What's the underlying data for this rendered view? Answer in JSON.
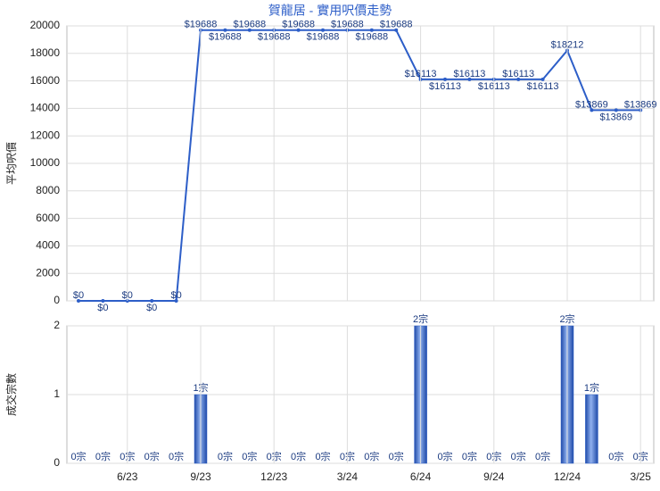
{
  "chart_data": [
    {
      "type": "line",
      "title": "賀龍居 - 實用呎價走勢",
      "y_label": "平均呎價",
      "color": "#2d5ec8",
      "values": [
        0,
        0,
        0,
        0,
        0,
        19688,
        19688,
        19688,
        19688,
        19688,
        19688,
        19688,
        19688,
        19688,
        16113,
        16113,
        16113,
        16113,
        16113,
        16113,
        18212,
        13869,
        13869,
        13869
      ],
      "value_labels": [
        "$0",
        "$0",
        "$0",
        "$0",
        "$0",
        "$19688",
        "$19688",
        "$19688",
        "$19688",
        "$19688",
        "$19688",
        "$19688",
        "$19688",
        "$19688",
        "$16113",
        "$16113",
        "$16113",
        "$16113",
        "$16113",
        "$16113",
        "$18212",
        "$13869",
        "$13869",
        "$13869"
      ],
      "ylim": [
        0,
        20000
      ],
      "yticks": [
        0,
        2000,
        4000,
        6000,
        8000,
        10000,
        12000,
        14000,
        16000,
        18000,
        20000
      ],
      "grid": true
    },
    {
      "type": "bar",
      "y_label": "成交宗數",
      "color": "#2d5ec8",
      "categories": [
        null,
        null,
        "6/23",
        null,
        null,
        "9/23",
        null,
        null,
        "12/23",
        null,
        null,
        "3/24",
        null,
        null,
        "6/24",
        null,
        null,
        "9/24",
        null,
        null,
        "12/24",
        null,
        null,
        "3/25"
      ],
      "values": [
        0,
        0,
        0,
        0,
        0,
        1,
        0,
        0,
        0,
        0,
        0,
        0,
        0,
        0,
        2,
        0,
        0,
        0,
        0,
        0,
        2,
        1,
        0,
        0
      ],
      "value_labels": [
        "0宗",
        "0宗",
        "0宗",
        "0宗",
        "0宗",
        "1宗",
        "0宗",
        "0宗",
        "0宗",
        "0宗",
        "0宗",
        "0宗",
        "0宗",
        "0宗",
        "2宗",
        "0宗",
        "0宗",
        "0宗",
        "0宗",
        "0宗",
        "2宗",
        "1宗",
        "0宗",
        "0宗"
      ],
      "ylim": [
        0,
        2
      ],
      "yticks": [
        0,
        1,
        2
      ],
      "grid": true
    }
  ]
}
